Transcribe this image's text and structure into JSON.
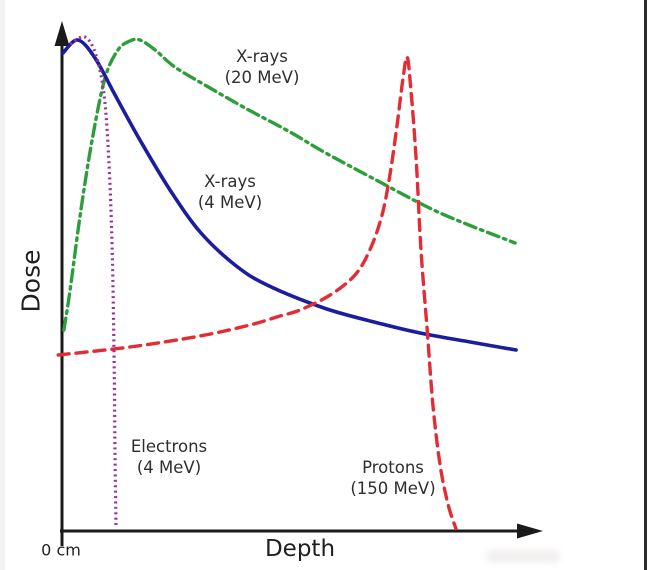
{
  "chart_data": {
    "type": "line",
    "xlabel": "Depth",
    "ylabel": "Dose",
    "x_origin_label": "0 cm",
    "xlim": [
      0,
      100
    ],
    "ylim": [
      0,
      1.0
    ],
    "grid": false,
    "legend": "inline-annotations",
    "axis_color": "#1a1a1a",
    "axes_note": "qualitative axes, no tick values; arrows on both axis ends",
    "series": [
      {
        "id": "xrays-20mev",
        "label_line1": "X-rays",
        "label_line2": "(20 MeV)",
        "color": "#2e9e3c",
        "style": "dashdot",
        "width": 3.4,
        "x": [
          0.4,
          1.7,
          3.8,
          6.3,
          9.0,
          11.7,
          14.2,
          16.3,
          19.5,
          23.6,
          29.9,
          38.3,
          47.7,
          54.8,
          66.5,
          79.1,
          94.8
        ],
        "y": [
          0.402,
          0.482,
          0.632,
          0.782,
          0.906,
          0.962,
          0.98,
          0.982,
          0.962,
          0.928,
          0.892,
          0.846,
          0.798,
          0.758,
          0.698,
          0.636,
          0.576
        ]
      },
      {
        "id": "xrays-4mev",
        "label_line1": "X-rays",
        "label_line2": "(4 MeV)",
        "color": "#1c1ca0",
        "style": "solid",
        "width": 3.6,
        "x": [
          0.2,
          3.3,
          6.9,
          11.1,
          16.3,
          22.6,
          28.9,
          36.2,
          42.9,
          54.8,
          65.3,
          74.9,
          85.4,
          95.0
        ],
        "y": [
          0.956,
          0.982,
          0.946,
          0.872,
          0.782,
          0.682,
          0.598,
          0.532,
          0.492,
          0.446,
          0.418,
          0.396,
          0.378,
          0.362
        ]
      },
      {
        "id": "electrons-4mev",
        "label_line1": "Electrons",
        "label_line2": "(4 MeV)",
        "color": "#993399",
        "style": "dotted",
        "width": 3.2,
        "x": [
          1.7,
          4.8,
          7.1,
          8.8,
          9.8,
          10.5,
          10.9,
          11.1,
          11.3
        ],
        "y": [
          0.974,
          0.988,
          0.952,
          0.872,
          0.742,
          0.562,
          0.342,
          0.142,
          0.006
        ]
      },
      {
        "id": "protons-150mev",
        "label_line1": "Protons",
        "label_line2": "(150 MeV)",
        "color": "#e12d35",
        "style": "dashed",
        "width": 3.4,
        "x": [
          -0.8,
          14.2,
          28.9,
          39.3,
          45.6,
          49.8,
          56.1,
          61.3,
          64.4,
          66.9,
          68.6,
          70.1,
          71.3,
          72.2,
          73.0,
          74.1,
          75.1,
          76.4,
          77.6,
          79.1,
          80.8,
          82.4
        ],
        "y": [
          0.352,
          0.368,
          0.39,
          0.412,
          0.43,
          0.442,
          0.472,
          0.512,
          0.562,
          0.63,
          0.712,
          0.812,
          0.902,
          0.948,
          0.882,
          0.742,
          0.562,
          0.402,
          0.252,
          0.132,
          0.052,
          0.005
        ]
      }
    ]
  }
}
